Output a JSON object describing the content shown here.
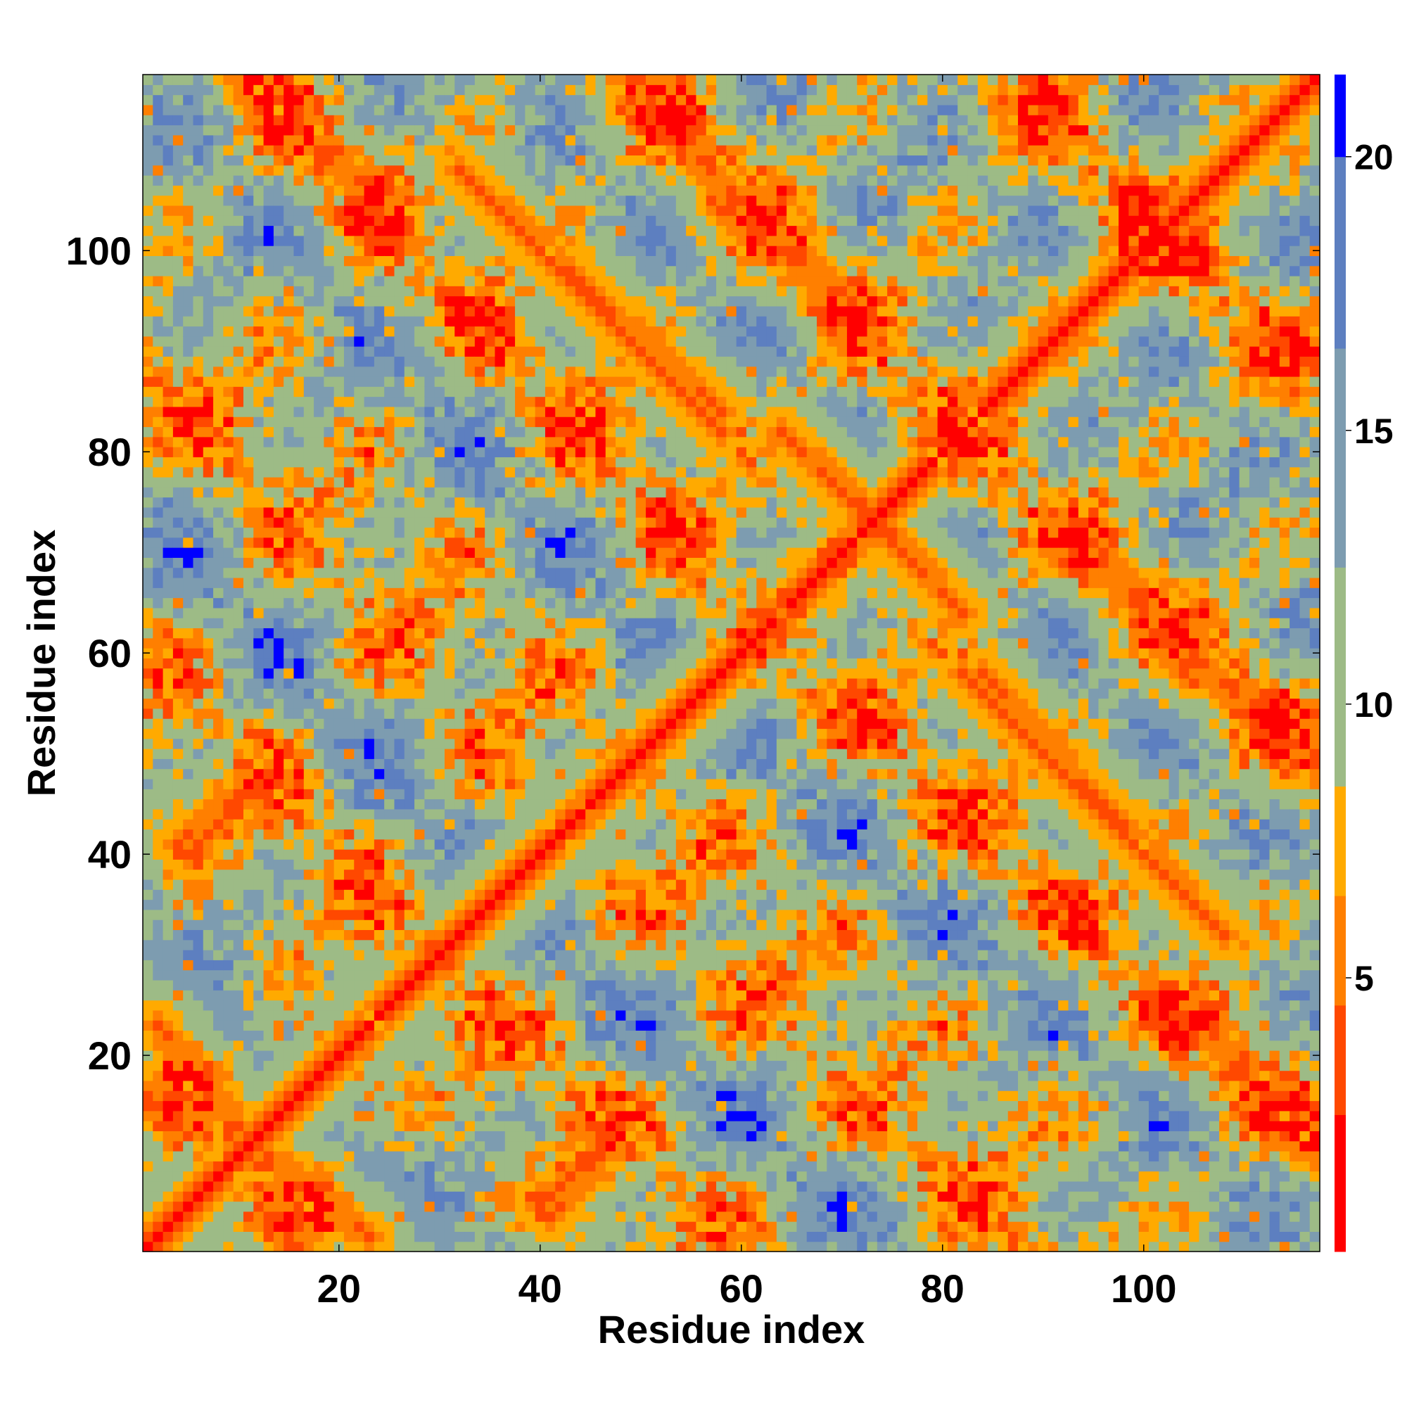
{
  "chart_data": {
    "type": "heatmap",
    "title": "",
    "xlabel": "Residue index",
    "ylabel": "Residue index",
    "x_range": [
      1,
      117
    ],
    "y_range": [
      1,
      117
    ],
    "x_ticks": [
      20,
      40,
      60,
      80,
      100
    ],
    "y_ticks": [
      20,
      40,
      60,
      80,
      100
    ],
    "x_tick_labels": [
      "20",
      "40",
      "60",
      "80",
      "100"
    ],
    "y_tick_labels": [
      "20",
      "40",
      "60",
      "80",
      "100"
    ],
    "colorbar": {
      "range": [
        0,
        21.5
      ],
      "ticks": [
        5,
        10,
        15,
        20
      ],
      "tick_labels": [
        "5",
        "10",
        "15",
        "20"
      ],
      "colors": [
        "#ff0000",
        "#ff4800",
        "#ff7f00",
        "#ffaa00",
        "#9dbb86",
        "#7d9cb0",
        "#5d7fc0",
        "#0000ff"
      ],
      "bounds": [
        0,
        2.5,
        4.5,
        6.5,
        8.5,
        12.5,
        16.5,
        20.0,
        21.5
      ]
    },
    "grid": false,
    "features": {
      "main_diagonal": "contacts along i = j",
      "antidiagonal_strands": [
        {
          "points": [
            [
              2,
              23
            ],
            [
              11,
              12
            ]
          ]
        },
        {
          "points": [
            [
              5,
              40
            ],
            [
              12,
              47
            ]
          ]
        },
        {
          "points": [
            [
              15,
              113
            ],
            [
              23,
              106
            ]
          ]
        },
        {
          "points": [
            [
              32,
              108
            ],
            [
              58,
              82
            ]
          ]
        },
        {
          "points": [
            [
              41,
              4
            ],
            [
              48,
              12
            ]
          ]
        },
        {
          "points": [
            [
              51,
              116
            ],
            [
              62,
              101
            ]
          ]
        },
        {
          "points": [
            [
              64,
              100
            ],
            [
              73,
              92
            ]
          ]
        },
        {
          "points": [
            [
              66,
              80
            ],
            [
              72,
              74
            ]
          ]
        },
        {
          "points": [
            [
              73,
              74
            ],
            [
              82,
              64
            ]
          ]
        },
        {
          "points": [
            [
              84,
              58
            ],
            [
              108,
              32
            ]
          ]
        },
        {
          "points": [
            [
              93,
              73
            ],
            [
              115,
              49
            ]
          ]
        },
        {
          "points": [
            [
              106,
              23
            ],
            [
              113,
              14
            ]
          ]
        }
      ]
    }
  }
}
